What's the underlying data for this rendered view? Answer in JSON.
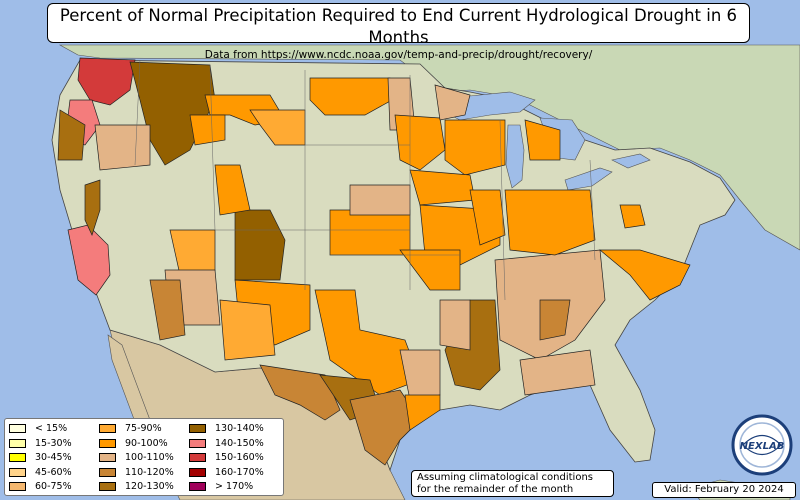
{
  "title": "Percent of Normal Precipitation Required to End Current Hydrological Drought in 6 Months",
  "subtitle": "Data from https://www.ncdc.noaa.gov/temp-and-precip/drought/recovery/",
  "note_line1": "Assuming climatological conditions",
  "note_line2": "for the remainder of the month",
  "valid": "Valid: February 20 2024",
  "logo_text": "NEXLAB",
  "legend": [
    {
      "label": "< 15%",
      "color": "#ffffe0"
    },
    {
      "label": "15-30%",
      "color": "#ffffa8"
    },
    {
      "label": "30-45%",
      "color": "#ffff00"
    },
    {
      "label": "45-60%",
      "color": "#ffd38a"
    },
    {
      "label": "60-75%",
      "color": "#f5b870"
    },
    {
      "label": "75-90%",
      "color": "#ffaa33"
    },
    {
      "label": "90-100%",
      "color": "#ff9900"
    },
    {
      "label": "100-110%",
      "color": "#e3b487"
    },
    {
      "label": "110-120%",
      "color": "#c88535"
    },
    {
      "label": "120-130%",
      "color": "#a86f10"
    },
    {
      "label": "130-140%",
      "color": "#936000"
    },
    {
      "label": "140-150%",
      "color": "#f47c7c"
    },
    {
      "label": "150-160%",
      "color": "#d33a3a"
    },
    {
      "label": "160-170%",
      "color": "#a30000"
    },
    {
      "label": "> 170%",
      "color": "#a0005a"
    }
  ],
  "colors": {
    "ocean": "#9fbde8",
    "land": "#d9dcbf",
    "canada": "#c9d8b5",
    "mexico": "#d8c7a2"
  }
}
